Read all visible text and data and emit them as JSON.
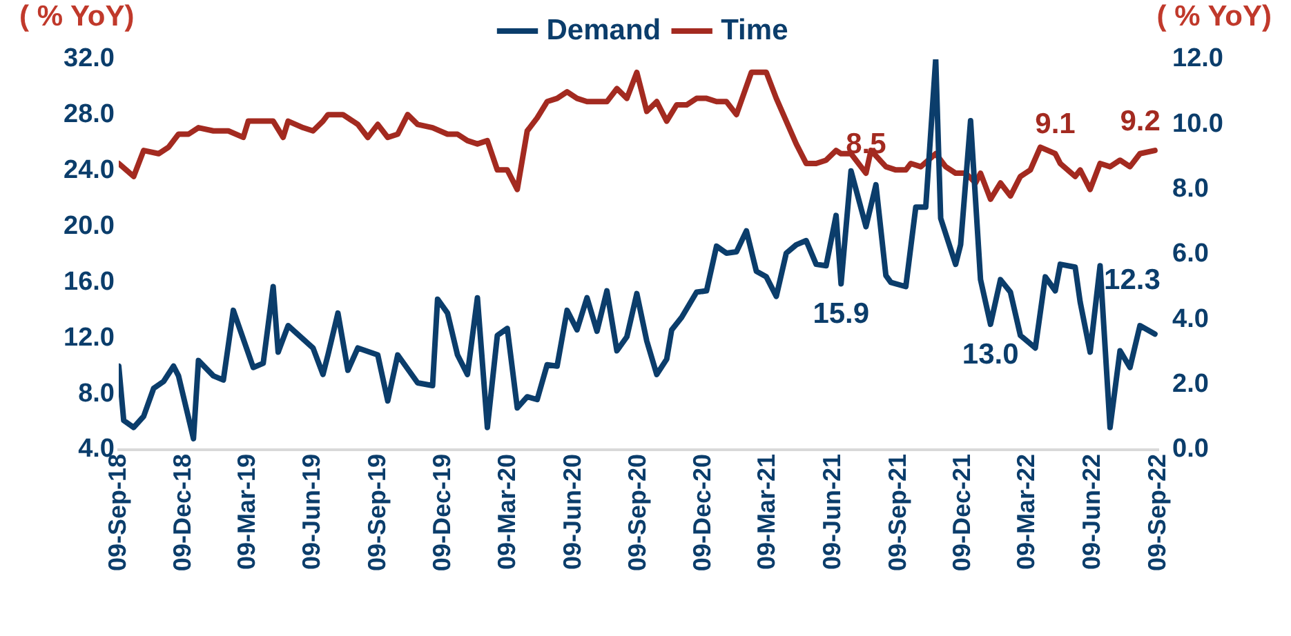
{
  "chart_data": {
    "type": "line",
    "ylabel": "( % YoY)",
    "y2label": "( % YoY)",
    "legend": "top",
    "grid": false,
    "marker": "none",
    "line_style": "solid",
    "xlim": [
      "2018-09-09",
      "2022-09-09"
    ],
    "xticks": [
      {
        "value": "2018-09-09",
        "label": "09-Sep-18"
      },
      {
        "value": "2018-12-09",
        "label": "09-Dec-18"
      },
      {
        "value": "2019-03-09",
        "label": "09-Mar-19"
      },
      {
        "value": "2019-06-09",
        "label": "09-Jun-19"
      },
      {
        "value": "2019-09-09",
        "label": "09-Sep-19"
      },
      {
        "value": "2019-12-09",
        "label": "09-Dec-19"
      },
      {
        "value": "2020-03-09",
        "label": "09-Mar-20"
      },
      {
        "value": "2020-06-09",
        "label": "09-Jun-20"
      },
      {
        "value": "2020-09-09",
        "label": "09-Sep-20"
      },
      {
        "value": "2020-12-09",
        "label": "09-Dec-20"
      },
      {
        "value": "2021-03-09",
        "label": "09-Mar-21"
      },
      {
        "value": "2021-06-09",
        "label": "09-Jun-21"
      },
      {
        "value": "2021-09-09",
        "label": "09-Sep-21"
      },
      {
        "value": "2021-12-09",
        "label": "09-Dec-21"
      },
      {
        "value": "2022-03-09",
        "label": "09-Mar-22"
      },
      {
        "value": "2022-06-09",
        "label": "09-Jun-22"
      },
      {
        "value": "2022-09-09",
        "label": "09-Sep-22"
      }
    ],
    "ylim": [
      4,
      32
    ],
    "yticks": [
      {
        "value": 4,
        "label": "4.0"
      },
      {
        "value": 8,
        "label": "8.0"
      },
      {
        "value": 12,
        "label": "12.0"
      },
      {
        "value": 16,
        "label": "16.0"
      },
      {
        "value": 20,
        "label": "20.0"
      },
      {
        "value": 24,
        "label": "24.0"
      },
      {
        "value": 28,
        "label": "28.0"
      },
      {
        "value": 32,
        "label": "32.0"
      }
    ],
    "y2lim": [
      0,
      12
    ],
    "y2ticks": [
      {
        "value": 0,
        "label": "0.0"
      },
      {
        "value": 2,
        "label": "2.0"
      },
      {
        "value": 4,
        "label": "4.0"
      },
      {
        "value": 6,
        "label": "6.0"
      },
      {
        "value": 8,
        "label": "8.0"
      },
      {
        "value": 10,
        "label": "10.0"
      },
      {
        "value": 12,
        "label": "12.0"
      }
    ],
    "series": [
      {
        "name": "Demand",
        "color": "#0b3d6b",
        "axis": "y",
        "x": [
          "2018-09-09",
          "2018-09-16",
          "2018-09-30",
          "2018-10-14",
          "2018-10-28",
          "2018-11-11",
          "2018-11-25",
          "2018-12-02",
          "2018-12-23",
          "2018-12-30",
          "2019-01-20",
          "2019-02-03",
          "2019-02-17",
          "2019-03-17",
          "2019-03-31",
          "2019-04-14",
          "2019-04-21",
          "2019-05-05",
          "2019-06-09",
          "2019-06-23",
          "2019-06-30",
          "2019-07-14",
          "2019-07-28",
          "2019-08-11",
          "2019-09-08",
          "2019-09-22",
          "2019-10-06",
          "2019-11-03",
          "2019-11-24",
          "2019-12-01",
          "2019-12-15",
          "2019-12-29",
          "2020-01-12",
          "2020-01-26",
          "2020-02-09",
          "2020-02-23",
          "2020-03-08",
          "2020-03-22",
          "2020-04-05",
          "2020-04-19",
          "2020-05-03",
          "2020-05-17",
          "2020-05-31",
          "2020-06-14",
          "2020-06-28",
          "2020-07-12",
          "2020-07-26",
          "2020-08-09",
          "2020-08-23",
          "2020-09-06",
          "2020-09-20",
          "2020-10-04",
          "2020-10-18",
          "2020-10-25",
          "2020-11-08",
          "2020-11-29",
          "2020-12-13",
          "2020-12-27",
          "2021-01-10",
          "2021-01-24",
          "2021-02-07",
          "2021-02-21",
          "2021-03-07",
          "2021-03-21",
          "2021-04-04",
          "2021-04-18",
          "2021-05-02",
          "2021-05-16",
          "2021-05-30",
          "2021-06-13",
          "2021-06-20",
          "2021-07-04",
          "2021-07-25",
          "2021-08-08",
          "2021-08-22",
          "2021-08-29",
          "2021-09-19",
          "2021-10-03",
          "2021-10-17",
          "2021-10-31",
          "2021-11-07",
          "2021-11-28",
          "2021-12-05",
          "2021-12-19",
          "2022-01-02",
          "2022-01-16",
          "2022-01-30",
          "2022-02-13",
          "2022-02-27",
          "2022-03-20",
          "2022-04-03",
          "2022-04-17",
          "2022-04-24",
          "2022-05-15",
          "2022-05-22",
          "2022-06-05",
          "2022-06-19",
          "2022-07-03",
          "2022-07-17",
          "2022-07-31",
          "2022-08-14",
          "2022-09-04"
        ],
        "values": [
          10.0,
          6.1,
          5.6,
          6.4,
          8.4,
          8.9,
          10.0,
          9.3,
          4.8,
          10.4,
          9.3,
          9.0,
          14.0,
          9.9,
          10.2,
          15.7,
          11.0,
          12.9,
          11.3,
          9.4,
          10.8,
          13.8,
          9.7,
          11.3,
          10.8,
          7.5,
          10.8,
          8.8,
          8.6,
          14.8,
          13.8,
          10.8,
          9.4,
          14.9,
          5.6,
          12.2,
          12.7,
          7.0,
          7.8,
          7.6,
          10.1,
          10.0,
          14.0,
          12.6,
          14.9,
          12.5,
          15.4,
          11.1,
          12.1,
          15.2,
          11.8,
          9.4,
          10.5,
          12.6,
          13.5,
          15.3,
          15.4,
          18.6,
          18.1,
          18.2,
          19.7,
          16.8,
          16.4,
          15.0,
          18.1,
          18.7,
          19.0,
          17.3,
          17.2,
          20.8,
          15.9,
          24.0,
          20.0,
          23.0,
          16.5,
          16.0,
          15.7,
          21.4,
          21.4,
          32.0,
          20.6,
          17.3,
          18.7,
          27.6,
          16.2,
          13.0,
          16.2,
          15.3,
          12.2,
          11.3,
          16.4,
          15.4,
          17.3,
          17.1,
          14.6,
          11.0,
          17.2,
          5.6,
          11.1,
          9.9,
          12.9,
          12.3
        ],
        "value_labels": [
          null,
          null,
          null,
          null,
          null,
          null,
          null,
          null,
          null,
          null,
          null,
          null,
          null,
          null,
          null,
          null,
          null,
          null,
          null,
          null,
          null,
          null,
          null,
          null,
          null,
          null,
          null,
          null,
          null,
          null,
          null,
          null,
          null,
          null,
          null,
          null,
          null,
          null,
          null,
          null,
          null,
          null,
          null,
          null,
          null,
          null,
          null,
          null,
          null,
          null,
          null,
          null,
          null,
          null,
          null,
          null,
          null,
          null,
          null,
          null,
          null,
          null,
          null,
          null,
          null,
          null,
          null,
          null,
          null,
          null,
          "15.9",
          null,
          null,
          null,
          null,
          null,
          null,
          null,
          null,
          null,
          null,
          null,
          null,
          null,
          null,
          "13.0",
          null,
          null,
          null,
          null,
          null,
          null,
          null,
          null,
          null,
          null,
          null,
          null,
          null,
          null,
          null,
          "12.3"
        ]
      },
      {
        "name": "Time",
        "color": "#a32a20",
        "axis": "y2",
        "x": [
          "2018-09-09",
          "2018-09-30",
          "2018-10-14",
          "2018-11-04",
          "2018-11-18",
          "2018-12-02",
          "2018-12-16",
          "2018-12-30",
          "2019-01-20",
          "2019-02-10",
          "2019-03-03",
          "2019-03-10",
          "2019-04-14",
          "2019-04-28",
          "2019-05-05",
          "2019-05-26",
          "2019-06-09",
          "2019-06-23",
          "2019-06-30",
          "2019-07-21",
          "2019-08-11",
          "2019-08-25",
          "2019-09-08",
          "2019-09-22",
          "2019-10-06",
          "2019-10-20",
          "2019-11-03",
          "2019-11-24",
          "2019-12-15",
          "2019-12-29",
          "2020-01-12",
          "2020-01-26",
          "2020-02-09",
          "2020-02-23",
          "2020-03-08",
          "2020-03-22",
          "2020-04-05",
          "2020-04-19",
          "2020-05-03",
          "2020-05-17",
          "2020-05-31",
          "2020-06-14",
          "2020-06-28",
          "2020-07-26",
          "2020-08-09",
          "2020-08-23",
          "2020-09-06",
          "2020-09-20",
          "2020-10-04",
          "2020-10-18",
          "2020-11-01",
          "2020-11-15",
          "2020-11-29",
          "2020-12-13",
          "2020-12-27",
          "2021-01-10",
          "2021-01-24",
          "2021-02-14",
          "2021-03-07",
          "2021-03-21",
          "2021-04-18",
          "2021-05-02",
          "2021-05-16",
          "2021-05-30",
          "2021-06-13",
          "2021-06-20",
          "2021-07-04",
          "2021-07-25",
          "2021-08-01",
          "2021-08-22",
          "2021-09-05",
          "2021-09-19",
          "2021-09-26",
          "2021-10-10",
          "2021-10-31",
          "2021-11-14",
          "2021-11-28",
          "2021-12-12",
          "2021-12-26",
          "2022-01-02",
          "2022-01-16",
          "2022-01-30",
          "2022-02-13",
          "2022-02-27",
          "2022-03-13",
          "2022-03-27",
          "2022-04-17",
          "2022-04-24",
          "2022-05-15",
          "2022-05-22",
          "2022-06-05",
          "2022-06-19",
          "2022-07-03",
          "2022-07-17",
          "2022-07-31",
          "2022-08-14",
          "2022-09-04"
        ],
        "values": [
          8.8,
          8.4,
          9.2,
          9.1,
          9.3,
          9.7,
          9.7,
          9.9,
          9.8,
          9.8,
          9.6,
          10.1,
          10.1,
          9.6,
          10.1,
          9.9,
          9.8,
          10.1,
          10.3,
          10.3,
          10.0,
          9.6,
          10.0,
          9.6,
          9.7,
          10.3,
          10.0,
          9.9,
          9.7,
          9.7,
          9.5,
          9.4,
          9.5,
          8.6,
          8.6,
          8.0,
          9.8,
          10.2,
          10.7,
          10.8,
          11.0,
          10.8,
          10.7,
          10.7,
          11.1,
          10.8,
          11.6,
          10.4,
          10.7,
          10.1,
          10.6,
          10.6,
          10.8,
          10.8,
          10.7,
          10.7,
          10.3,
          11.6,
          11.6,
          10.8,
          9.4,
          8.8,
          8.8,
          8.9,
          9.2,
          9.1,
          9.1,
          8.5,
          9.2,
          8.7,
          8.6,
          8.6,
          8.8,
          8.7,
          9.1,
          8.7,
          8.5,
          8.5,
          8.2,
          8.5,
          7.7,
          8.2,
          7.8,
          8.4,
          8.6,
          9.3,
          9.1,
          8.8,
          8.4,
          8.6,
          8.0,
          8.8,
          8.7,
          8.9,
          8.7,
          9.1,
          9.2
        ],
        "value_labels": [
          null,
          null,
          null,
          null,
          null,
          null,
          null,
          null,
          null,
          null,
          null,
          null,
          null,
          null,
          null,
          null,
          null,
          null,
          null,
          null,
          null,
          null,
          null,
          null,
          null,
          null,
          null,
          null,
          null,
          null,
          null,
          null,
          null,
          null,
          null,
          null,
          null,
          null,
          null,
          null,
          null,
          null,
          null,
          null,
          null,
          null,
          null,
          null,
          null,
          null,
          null,
          null,
          null,
          null,
          null,
          null,
          null,
          null,
          null,
          null,
          null,
          null,
          null,
          null,
          null,
          null,
          null,
          "8.5",
          null,
          null,
          null,
          null,
          null,
          null,
          null,
          null,
          null,
          null,
          null,
          null,
          null,
          null,
          null,
          null,
          null,
          null,
          "9.1",
          null,
          null,
          null,
          null,
          null,
          null,
          null,
          null,
          null,
          "9.2"
        ]
      }
    ]
  }
}
